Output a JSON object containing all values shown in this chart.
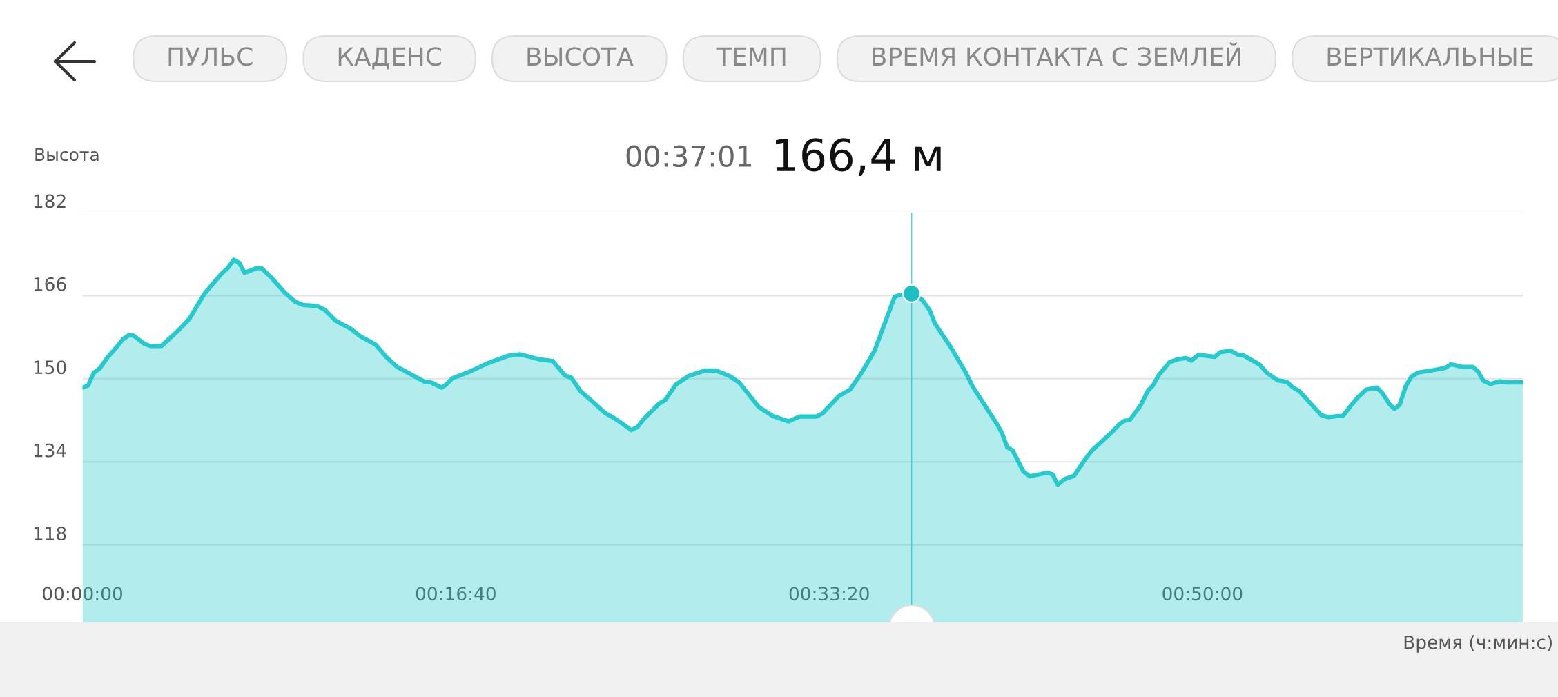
{
  "chart_data": {
    "type": "area",
    "title": "00:37:01",
    "subtitle": "166,4 м",
    "ylabel": "Высота",
    "xlabel": "Время (ч:мин:с)",
    "annotations": [
      "ПУЛЬС",
      "КАДЕНС",
      "ВЫСОТА",
      "ТЕМП",
      "ВРЕМЯ КОНТАКТА С ЗЕМЛЕЙ",
      "ВЕРТИКАЛЬНЫЕ"
    ],
    "xlim": [
      0,
      1.072
    ],
    "xticks": [
      {
        "value": 0,
        "label": "00:00:00"
      },
      {
        "value": 0.2778,
        "label": "00:16:40"
      },
      {
        "value": 0.5556,
        "label": "00:33:20"
      },
      {
        "value": 0.8333,
        "label": "00:50:00"
      }
    ],
    "ylim": [
      103,
      182
    ],
    "yticks": [
      118,
      134,
      150,
      166,
      182
    ],
    "grid": "y",
    "legend": false,
    "ref_lines": [
      {
        "axis": "x",
        "value": 0.6169,
        "color": "#26c9cc"
      }
    ],
    "series": [
      {
        "type": "area",
        "color": "#26c9cc",
        "x": [
          0,
          0.0042,
          0.0083,
          0.0129,
          0.0186,
          0.0244,
          0.0301,
          0.0346,
          0.0381,
          0.0461,
          0.0507,
          0.0587,
          0.0713,
          0.0794,
          0.0908,
          0.1034,
          0.108,
          0.1126,
          0.1167,
          0.1206,
          0.1298,
          0.1332,
          0.1412,
          0.1504,
          0.1584,
          0.1641,
          0.1745,
          0.1802,
          0.1882,
          0.1997,
          0.2065,
          0.218,
          0.226,
          0.234,
          0.2489,
          0.2546,
          0.2592,
          0.2673,
          0.2707,
          0.2753,
          0.2867,
          0.3016,
          0.3165,
          0.3257,
          0.3405,
          0.3499,
          0.3591,
          0.3637,
          0.3706,
          0.3786,
          0.3889,
          0.397,
          0.4084,
          0.413,
          0.4175,
          0.429,
          0.4336,
          0.4416,
          0.4508,
          0.4634,
          0.4714,
          0.4817,
          0.4886,
          0.5034,
          0.5138,
          0.5253,
          0.5333,
          0.5459,
          0.5505,
          0.563,
          0.5711,
          0.5791,
          0.5894,
          0.6043,
          0.6078,
          0.6169,
          0.6249,
          0.6306,
          0.6341,
          0.6455,
          0.6572,
          0.6626,
          0.6801,
          0.6841,
          0.6881,
          0.6921,
          0.7002,
          0.705,
          0.7177,
          0.7217,
          0.7257,
          0.7303,
          0.7378,
          0.7458,
          0.7512,
          0.7659,
          0.7713,
          0.7753,
          0.7794,
          0.7874,
          0.7928,
          0.7968,
          0.8008,
          0.8089,
          0.8143,
          0.821,
          0.825,
          0.8304,
          0.8425,
          0.8465,
          0.8545,
          0.8599,
          0.8639,
          0.876,
          0.8814,
          0.8894,
          0.8962,
          0.9002,
          0.9055,
          0.9217,
          0.927,
          0.9337,
          0.9377,
          0.9431,
          0.9485,
          0.9552,
          0.9632,
          0.9673,
          0.9726,
          0.9761,
          0.9801,
          0.9847,
          0.9888,
          0.9941,
          1.0062,
          1.0142,
          1.0182,
          1.0263,
          1.0344,
          1.0384,
          1.0424,
          1.0478,
          1.0545,
          1.0599,
          1.072
        ],
        "values": [
          148.3,
          148.7,
          151.1,
          152.0,
          154.1,
          155.8,
          157.6,
          158.4,
          158.3,
          156.7,
          156.3,
          156.3,
          159.3,
          161.5,
          166.4,
          170.2,
          171.3,
          172.9,
          172.3,
          170.4,
          171.3,
          171.3,
          169.3,
          166.6,
          164.8,
          164.2,
          164.0,
          163.3,
          161.2,
          159.6,
          158.2,
          156.6,
          154.2,
          152.3,
          150.2,
          149.4,
          149.3,
          148.3,
          148.9,
          150.1,
          151.2,
          153.0,
          154.4,
          154.7,
          153.7,
          153.4,
          150.6,
          150.2,
          147.6,
          145.8,
          143.4,
          142.2,
          140.1,
          140.7,
          142.2,
          145.2,
          145.9,
          148.9,
          150.5,
          151.6,
          151.6,
          150.5,
          149.3,
          144.5,
          142.8,
          141.8,
          142.7,
          142.7,
          143.3,
          146.7,
          147.9,
          150.9,
          155.4,
          165.8,
          166.1,
          166.4,
          165.2,
          163.1,
          160.7,
          156.3,
          151.2,
          148.4,
          141.4,
          139.6,
          136.8,
          136.2,
          132.1,
          131.2,
          131.9,
          131.6,
          129.6,
          130.6,
          131.3,
          134.4,
          136.2,
          139.7,
          141.2,
          141.9,
          142.1,
          144.9,
          147.7,
          148.8,
          150.7,
          153.2,
          153.7,
          154.0,
          153.5,
          154.6,
          154.2,
          155.1,
          155.4,
          154.6,
          154.5,
          152.7,
          151.1,
          149.7,
          149.4,
          148.4,
          147.6,
          143.0,
          142.6,
          142.8,
          142.8,
          144.6,
          146.3,
          147.9,
          148.3,
          147.2,
          145.1,
          144.2,
          145.0,
          148.6,
          150.4,
          151.2,
          151.7,
          152.1,
          152.8,
          152.3,
          152.3,
          151.4,
          149.6,
          149.0,
          149.5,
          149.3,
          149.3
        ]
      },
      {
        "type": "scatter",
        "color": "#1cbfc4",
        "x": [
          0.6169
        ],
        "values": [
          166.4
        ],
        "marker": "circle"
      }
    ]
  }
}
